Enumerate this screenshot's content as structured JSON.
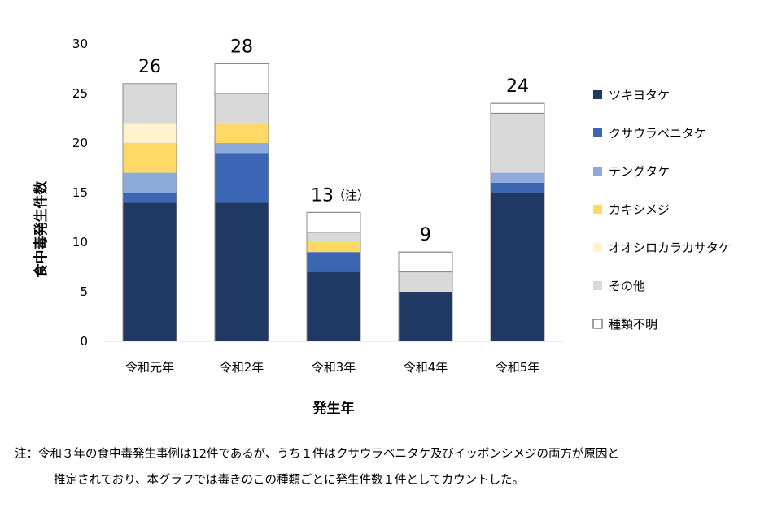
{
  "chart_data": {
    "type": "bar",
    "stacked": true,
    "categories": [
      "令和元年",
      "令和2年",
      "令和3年",
      "令和4年",
      "令和5年"
    ],
    "series": [
      {
        "name": "ツキヨタケ",
        "color": "#1f3864",
        "values": [
          14,
          14,
          7,
          5,
          15
        ]
      },
      {
        "name": "クサウラベニタケ",
        "color": "#3a66b4",
        "values": [
          1,
          5,
          2,
          0,
          1
        ]
      },
      {
        "name": "テングタケ",
        "color": "#8eaadb",
        "values": [
          2,
          1,
          0,
          0,
          1
        ]
      },
      {
        "name": "カキシメジ",
        "color": "#ffd966",
        "values": [
          3,
          2,
          1,
          0,
          0
        ]
      },
      {
        "name": "オオシロカラカサタケ",
        "color": "#fff2cc",
        "values": [
          2,
          0,
          0,
          0,
          0
        ]
      },
      {
        "name": "その他",
        "color": "#d9d9d9",
        "values": [
          4,
          3,
          1,
          2,
          6
        ]
      },
      {
        "name": "種類不明",
        "color": "#ffffff",
        "values": [
          0,
          3,
          2,
          2,
          1
        ]
      }
    ],
    "totals": [
      "26",
      "28",
      "13",
      "9",
      "24"
    ],
    "total_annotations": [
      "",
      "",
      "（注）",
      "",
      ""
    ],
    "ylim": [
      0,
      30
    ],
    "yticks": [
      0,
      5,
      10,
      15,
      20,
      25,
      30
    ],
    "ylabel": "食中毒発生件数",
    "xlabel": "発生年",
    "legend_position": "right",
    "grid": false
  },
  "footnote": {
    "line1": "注：令和３年の食中毒発生事例は12件であるが、うち１件はクサウラベニタケ及びイッポンシメジの両方が原因と",
    "line2": "推定されており、本グラフでは毒きのこの種類ごとに発生件数１件としてカウントした。"
  }
}
